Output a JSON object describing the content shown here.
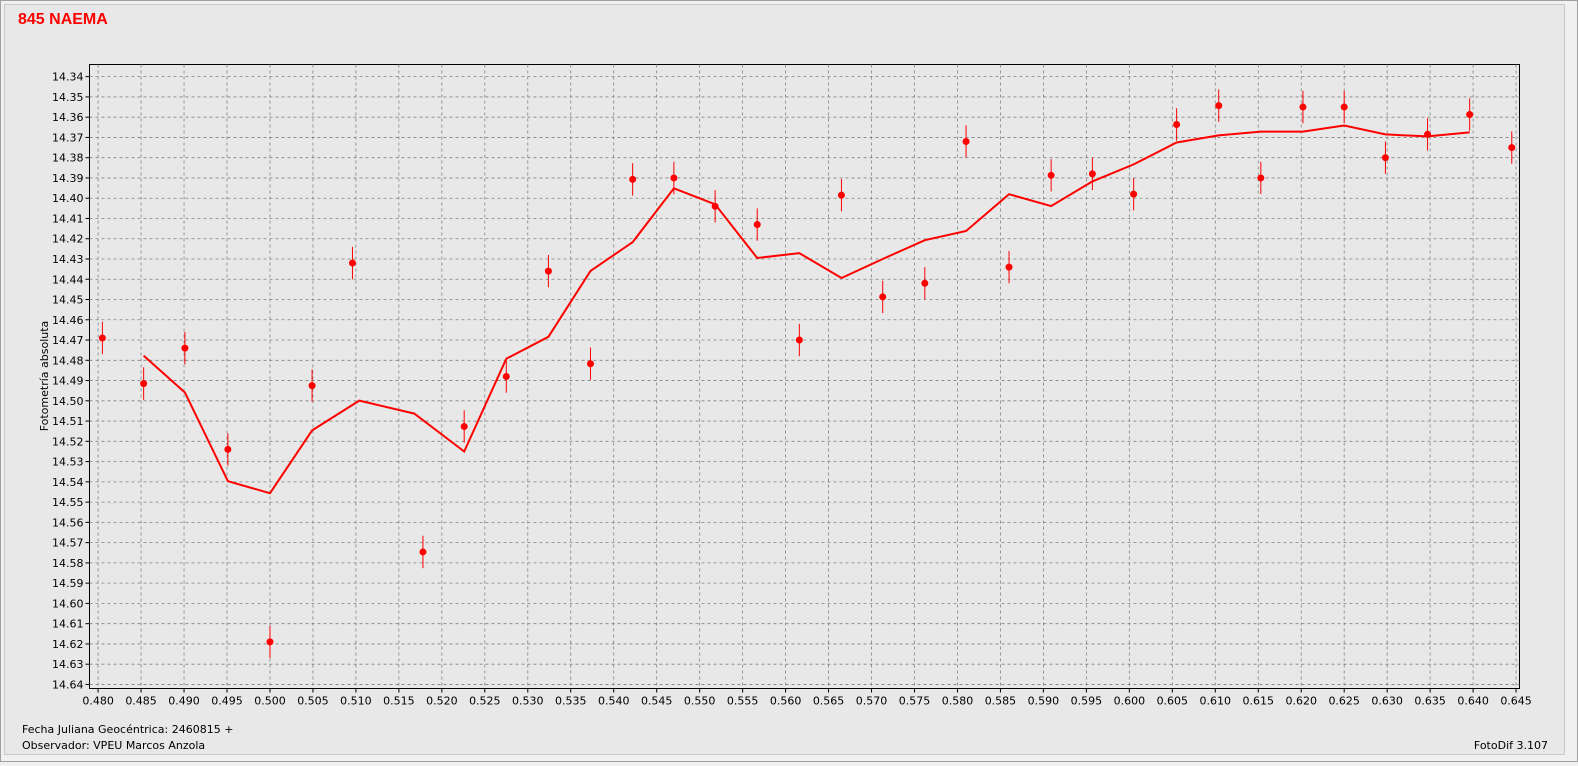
{
  "chart_data": {
    "type": "scatter",
    "title": "845 NAEMA",
    "ylabel": "Fotometría absoluta",
    "xlabel": "Fecha Juliana Geocéntrica: 2460815 +",
    "xlim": [
      0.479,
      0.6454
    ],
    "ylim": [
      14.334,
      14.642
    ],
    "y_inverted": true,
    "grid": true,
    "xticks": [
      {
        "value": 0.48,
        "label": "0.480"
      },
      0.485,
      {
        "value": 0.49,
        "label": "0.490"
      },
      0.495,
      {
        "value": 0.5,
        "label": "0.500"
      },
      0.505,
      {
        "value": 0.51,
        "label": "0.510"
      },
      0.515,
      {
        "value": 0.52,
        "label": "0.520"
      },
      0.525,
      {
        "value": 0.53,
        "label": "0.530"
      },
      0.535,
      {
        "value": 0.54,
        "label": "0.540"
      },
      0.545,
      {
        "value": 0.55,
        "label": "0.550"
      },
      0.555,
      {
        "value": 0.56,
        "label": "0.560"
      },
      0.565,
      {
        "value": 0.57,
        "label": "0.570"
      },
      0.575,
      {
        "value": 0.58,
        "label": "0.580"
      },
      0.585,
      {
        "value": 0.59,
        "label": "0.590"
      },
      0.595,
      {
        "value": 0.6,
        "label": "0.600"
      },
      0.605,
      {
        "value": 0.61,
        "label": "0.610"
      },
      0.615,
      {
        "value": 0.62,
        "label": "0.620"
      },
      0.625,
      {
        "value": 0.63,
        "label": "0.630"
      },
      0.635,
      {
        "value": 0.64,
        "label": "0.640"
      },
      0.645
    ],
    "yticks": [
      14.34,
      14.35,
      14.36,
      14.37,
      14.38,
      14.39,
      {
        "value": 14.4,
        "label": "14.40"
      },
      14.41,
      14.42,
      14.43,
      14.44,
      14.45,
      14.46,
      14.47,
      14.48,
      14.49,
      {
        "value": 14.5,
        "label": "14.50"
      },
      14.51,
      14.52,
      14.53,
      14.54,
      14.55,
      14.56,
      14.57,
      14.58,
      14.59,
      {
        "value": 14.6,
        "label": "14.60"
      },
      14.61,
      14.62,
      14.63,
      14.64
    ],
    "series": [
      {
        "type": "scatter",
        "color": "#ff0000",
        "x": [
          0.4805,
          0.4853,
          0.4901,
          0.4951,
          0.5,
          0.5049,
          0.5096,
          0.5178,
          0.5226,
          0.5275,
          0.5324,
          0.5373,
          0.5422,
          0.547,
          0.5518,
          0.5567,
          0.5616,
          0.5665,
          0.5713,
          0.5762,
          0.581,
          0.586,
          0.5909,
          0.5957,
          0.6005,
          0.6055,
          0.6104,
          0.6153,
          0.6202,
          0.625,
          0.6298,
          0.6347,
          0.6396,
          0.6445
        ],
        "values": [
          14.469,
          14.4915,
          14.474,
          14.524,
          14.619,
          14.4925,
          14.432,
          14.5746,
          14.5127,
          14.488,
          14.436,
          14.4817,
          14.3907,
          14.39,
          14.404,
          14.413,
          14.47,
          14.3985,
          14.4487,
          14.442,
          14.372,
          14.434,
          14.3887,
          14.388,
          14.398,
          14.3636,
          14.3543,
          14.39,
          14.355,
          14.355,
          14.38,
          14.3685,
          14.3587,
          14.375
        ],
        "errors": [
          0.008,
          0.008,
          0.008,
          0.008,
          0.008,
          0.008,
          0.008,
          0.008,
          0.008,
          0.008,
          0.008,
          0.008,
          0.008,
          0.008,
          0.008,
          0.008,
          0.008,
          0.008,
          0.008,
          0.008,
          0.008,
          0.008,
          0.008,
          0.008,
          0.008,
          0.008,
          0.008,
          0.008,
          0.008,
          0.008,
          0.008,
          0.008,
          0.008,
          0.008
        ]
      },
      {
        "type": "line",
        "color": "#ff0000",
        "x": [
          0.4853,
          0.4901,
          0.4951,
          0.5,
          0.5049,
          0.5104,
          0.5168,
          0.5226,
          0.5275,
          0.5324,
          0.5373,
          0.5422,
          0.547,
          0.5518,
          0.5567,
          0.5616,
          0.5665,
          0.5713,
          0.5762,
          0.581,
          0.586,
          0.5909,
          0.5957,
          0.6005,
          0.6055,
          0.6104,
          0.6153,
          0.6202,
          0.625,
          0.6298,
          0.6347,
          0.6396
        ],
        "values": [
          14.4777,
          14.4959,
          14.5397,
          14.5456,
          14.5146,
          14.4999,
          14.5063,
          14.525,
          14.4792,
          14.4684,
          14.4359,
          14.4217,
          14.3951,
          14.403,
          14.4295,
          14.4271,
          14.4394,
          14.43,
          14.4207,
          14.4162,
          14.398,
          14.4039,
          14.3917,
          14.3833,
          14.3725,
          14.369,
          14.3671,
          14.3671,
          14.3641,
          14.3685,
          14.3695,
          14.3675
        ]
      }
    ]
  },
  "footer": {
    "observer": "Observador: VPEU Marcos Anzola",
    "software": "FotoDif 3.107"
  }
}
